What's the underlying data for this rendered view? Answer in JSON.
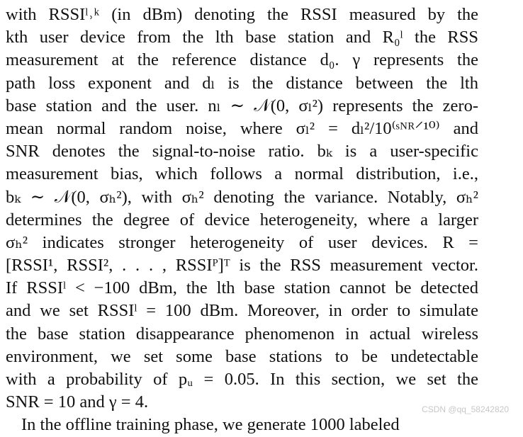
{
  "paragraph": {
    "lines": [
      "with RSSIˡ˒ᵏ (in dBm) denoting the RSSI measured by the",
      "kth user device from the lth base station and R₀ˡ the RSS",
      "measurement at the reference distance d₀. γ represents the",
      "path loss exponent and dₗ is the distance between the lth",
      "base station and the user. nₗ ∼ 𝒩(0, σₗ²) represents the zero-",
      "mean normal random noise, where σₗ² = dₗ²/10⁽ˢᴺᴿ⸍¹⁰⁾ and",
      "SNR denotes the signal-to-noise ratio. bₖ is a user-specific",
      "measurement bias, which follows a normal distribution, i.e.,",
      "bₖ ∼ 𝒩(0, σₕ²), with σₕ² denoting the variance. Notably, σₕ²",
      "determines the degree of device heterogeneity, where a larger",
      "σₕ² indicates stronger heterogeneity of user devices. R =",
      "[RSSI¹, RSSI², . . . , RSSIᴾ]ᵀ is the RSS measurement vector.",
      "If RSSIˡ < −100 dBm, the lth base station cannot be detected",
      "and we set RSSIˡ = 100 dBm. Moreover, in order to simulate",
      "the base station disappearance phenomenon in actual wireless",
      "environment, we set some base stations to be undetectable",
      "with a probability of pᵤ = 0.05. In this section, we set the",
      "SNR = 10 and γ = 4.",
      "In the offline training phase, we generate 1000 labeled"
    ]
  },
  "watermark": "CSDN @qq_58242820"
}
